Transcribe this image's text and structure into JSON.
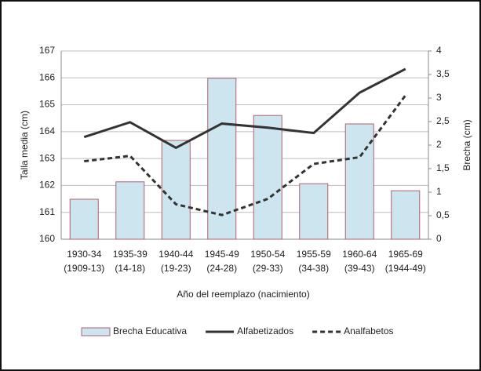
{
  "chart_data": {
    "type": "bar-line",
    "x_label": "Año del reemplazo (nacimiento)",
    "y_label": "Talla media (cm)",
    "y2_label": "Brecha (cm)",
    "categories": [
      [
        "1930-34",
        "(1909-13)"
      ],
      [
        "1935-39",
        "(14-18)"
      ],
      [
        "1940-44",
        "(19-23)"
      ],
      [
        "1945-49",
        "(24-28)"
      ],
      [
        "1950-54",
        "(29-33)"
      ],
      [
        "1955-59",
        "(34-38)"
      ],
      [
        "1960-64",
        "(39-43)"
      ],
      [
        "1965-69",
        "(1944-49)"
      ]
    ],
    "series": [
      {
        "name": "Brecha Educativa",
        "kind": "bar",
        "axis": "y2",
        "color": "#cce5ee",
        "edge": "#b06070",
        "values": [
          0.85,
          1.22,
          2.1,
          3.42,
          2.63,
          1.18,
          2.45,
          1.03
        ]
      },
      {
        "name": "Alfabetizados",
        "kind": "line",
        "axis": "y",
        "color": "#333333",
        "dash": "none",
        "values": [
          163.8,
          164.35,
          163.4,
          164.3,
          164.15,
          163.95,
          165.45,
          166.33
        ]
      },
      {
        "name": "Analfabetos",
        "kind": "line",
        "axis": "y",
        "color": "#333333",
        "dash": "6,4",
        "values": [
          162.9,
          163.1,
          161.3,
          160.9,
          161.5,
          162.8,
          163.05,
          165.35
        ]
      }
    ],
    "ylim": [
      160,
      167
    ],
    "yticks": [
      160,
      161,
      162,
      163,
      164,
      165,
      166,
      167
    ],
    "y2lim": [
      0,
      4
    ],
    "y2ticks": [
      0,
      {
        "value": 0.5,
        "label": "0,5"
      },
      1,
      {
        "value": 1.5,
        "label": "1,5"
      },
      2,
      {
        "value": 2.5,
        "label": "2,5"
      },
      3,
      {
        "value": 3.5,
        "label": "3,5"
      },
      4
    ],
    "grid": true
  }
}
